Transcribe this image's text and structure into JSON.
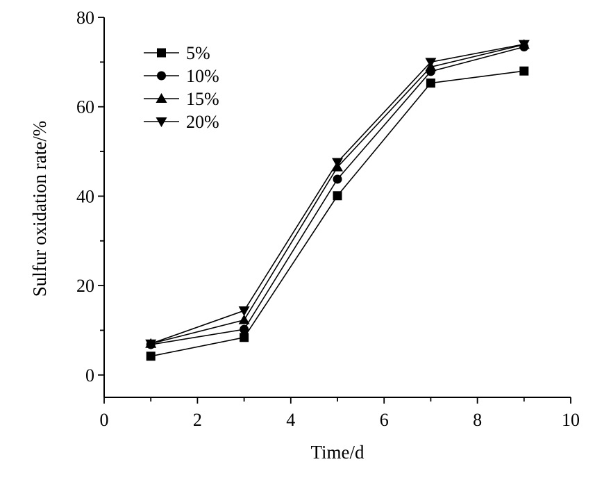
{
  "chart_data": {
    "type": "line",
    "xlabel": "Time/d",
    "ylabel": "Sulfur oxidation rate/%",
    "xlim": [
      0,
      10
    ],
    "ylim": [
      -5,
      80
    ],
    "xticks": [
      0,
      2,
      4,
      6,
      8,
      10
    ],
    "yticks": [
      0,
      20,
      40,
      60,
      80
    ],
    "x": [
      1,
      3,
      5,
      7,
      9
    ],
    "grid": false,
    "legend_position": "top-left",
    "series": [
      {
        "name": "5%",
        "marker": "square",
        "values": [
          4.2,
          8.4,
          40.1,
          65.3,
          68.0
        ]
      },
      {
        "name": "10%",
        "marker": "circle",
        "values": [
          6.8,
          10.2,
          43.8,
          67.9,
          73.4
        ]
      },
      {
        "name": "15%",
        "marker": "triangle-up",
        "values": [
          7.0,
          12.3,
          46.5,
          68.9,
          73.9
        ]
      },
      {
        "name": "20%",
        "marker": "triangle-down",
        "values": [
          7.0,
          14.4,
          47.6,
          70.0,
          74.0
        ]
      }
    ]
  }
}
